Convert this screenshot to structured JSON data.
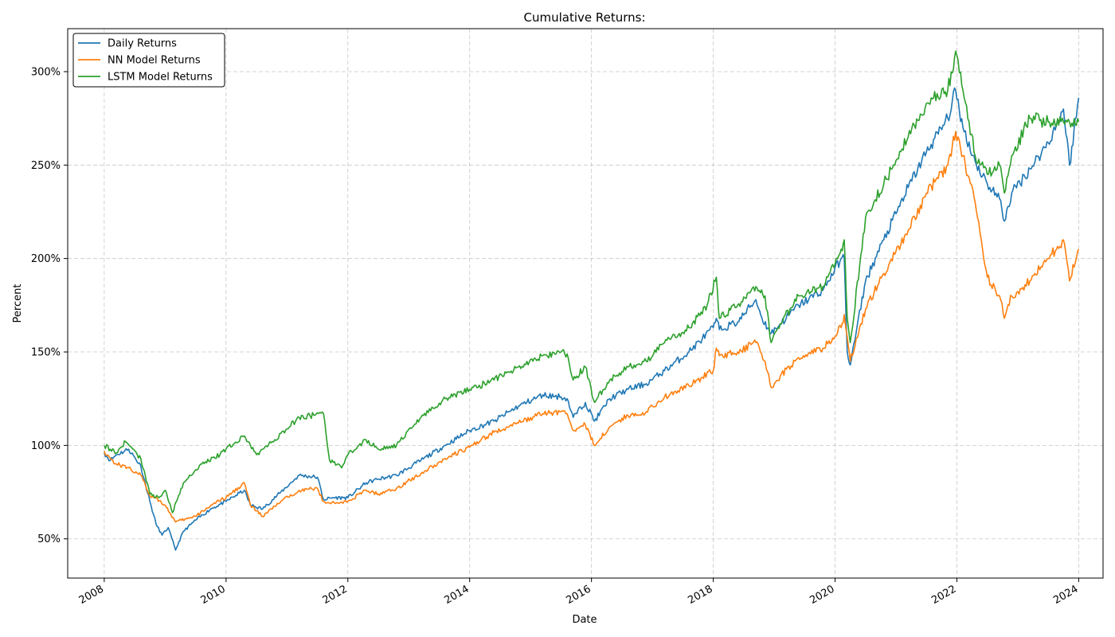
{
  "chart_data": {
    "type": "line",
    "title": "Cumulative Returns:",
    "xlabel": "Date",
    "ylabel": "Percent",
    "xlim": [
      2007.4,
      2024.4
    ],
    "ylim": [
      29,
      323
    ],
    "grid": true,
    "legend_position": "top-left",
    "x_ticks": [
      2008,
      2010,
      2012,
      2014,
      2016,
      2018,
      2020,
      2022,
      2024
    ],
    "x_tick_labels": [
      "2008",
      "2010",
      "2012",
      "2014",
      "2016",
      "2018",
      "2020",
      "2022",
      "2024"
    ],
    "y_ticks": [
      50,
      100,
      150,
      200,
      250,
      300
    ],
    "y_tick_labels": [
      "50%",
      "100%",
      "150%",
      "200%",
      "250%",
      "300%"
    ],
    "series": [
      {
        "name": "Daily Returns",
        "color": "#1f77b4",
        "x": [
          2008.0,
          2008.1,
          2008.2,
          2008.4,
          2008.6,
          2008.75,
          2008.85,
          2008.95,
          2009.05,
          2009.17,
          2009.3,
          2009.5,
          2009.75,
          2010.0,
          2010.3,
          2010.4,
          2010.6,
          2010.9,
          2011.2,
          2011.5,
          2011.6,
          2011.75,
          2012.0,
          2012.3,
          2012.5,
          2012.8,
          2013.2,
          2013.6,
          2014.0,
          2014.4,
          2014.8,
          2015.2,
          2015.5,
          2015.6,
          2015.7,
          2015.9,
          2016.05,
          2016.3,
          2016.6,
          2016.9,
          2017.2,
          2017.6,
          2018.0,
          2018.05,
          2018.1,
          2018.4,
          2018.7,
          2018.8,
          2018.95,
          2019.1,
          2019.4,
          2019.8,
          2020.1,
          2020.15,
          2020.2,
          2020.25,
          2020.5,
          2020.8,
          2021.2,
          2021.5,
          2021.85,
          2021.98,
          2022.1,
          2022.3,
          2022.5,
          2022.7,
          2022.78,
          2022.9,
          2023.2,
          2023.5,
          2023.75,
          2023.85,
          2024.0
        ],
        "y": [
          96,
          92,
          95,
          98,
          89,
          70,
          58,
          52,
          56,
          44,
          54,
          60,
          66,
          70,
          76,
          68,
          66,
          75,
          84,
          83,
          71,
          72,
          72,
          80,
          82,
          84,
          92,
          100,
          108,
          113,
          121,
          127,
          126,
          125,
          115,
          123,
          113,
          125,
          130,
          133,
          140,
          150,
          163,
          168,
          162,
          166,
          178,
          168,
          160,
          165,
          175,
          183,
          200,
          200,
          150,
          143,
          188,
          210,
          238,
          257,
          275,
          290,
          270,
          252,
          240,
          232,
          220,
          235,
          248,
          262,
          280,
          250,
          286
        ]
      },
      {
        "name": "NN Model Returns",
        "color": "#ff7f0e",
        "x": [
          2008.0,
          2008.1,
          2008.2,
          2008.4,
          2008.6,
          2008.75,
          2008.85,
          2009.0,
          2009.17,
          2009.5,
          2009.75,
          2010.0,
          2010.3,
          2010.4,
          2010.6,
          2010.9,
          2011.2,
          2011.5,
          2011.6,
          2011.8,
          2012.0,
          2012.3,
          2012.5,
          2012.8,
          2013.2,
          2013.6,
          2014.0,
          2014.4,
          2014.8,
          2015.2,
          2015.5,
          2015.6,
          2015.7,
          2015.9,
          2016.05,
          2016.3,
          2016.6,
          2016.9,
          2017.2,
          2017.6,
          2018.0,
          2018.05,
          2018.1,
          2018.4,
          2018.7,
          2018.85,
          2018.95,
          2019.1,
          2019.4,
          2019.8,
          2020.1,
          2020.15,
          2020.2,
          2020.25,
          2020.5,
          2020.8,
          2021.2,
          2021.5,
          2021.85,
          2021.98,
          2022.1,
          2022.3,
          2022.4,
          2022.5,
          2022.7,
          2022.78,
          2022.9,
          2023.2,
          2023.5,
          2023.75,
          2023.85,
          2024.0
        ],
        "y": [
          97,
          93,
          90,
          88,
          84,
          73,
          72,
          68,
          59,
          62,
          68,
          72,
          80,
          68,
          62,
          70,
          76,
          77,
          70,
          69,
          70,
          76,
          74,
          77,
          85,
          93,
          99,
          107,
          112,
          117,
          118,
          117,
          108,
          111,
          100,
          110,
          116,
          118,
          126,
          132,
          140,
          152,
          148,
          150,
          155,
          145,
          131,
          137,
          147,
          152,
          163,
          170,
          158,
          145,
          173,
          192,
          215,
          235,
          250,
          268,
          255,
          230,
          210,
          190,
          180,
          168,
          180,
          188,
          200,
          210,
          188,
          205
        ]
      },
      {
        "name": "LSTM Model Returns",
        "color": "#2ca02c",
        "x": [
          2008.0,
          2008.1,
          2008.2,
          2008.35,
          2008.6,
          2008.75,
          2008.9,
          2009.0,
          2009.12,
          2009.3,
          2009.6,
          2009.9,
          2010.0,
          2010.3,
          2010.5,
          2010.8,
          2011.2,
          2011.6,
          2011.7,
          2011.9,
          2012.0,
          2012.3,
          2012.5,
          2012.8,
          2013.2,
          2013.6,
          2014.0,
          2014.4,
          2014.8,
          2015.2,
          2015.5,
          2015.6,
          2015.7,
          2015.9,
          2016.05,
          2016.3,
          2016.6,
          2016.9,
          2017.2,
          2017.6,
          2017.9,
          2018.05,
          2018.1,
          2018.4,
          2018.7,
          2018.85,
          2018.95,
          2019.1,
          2019.4,
          2019.8,
          2020.1,
          2020.15,
          2020.2,
          2020.25,
          2020.5,
          2020.8,
          2021.2,
          2021.5,
          2021.85,
          2021.98,
          2022.1,
          2022.3,
          2022.5,
          2022.7,
          2022.78,
          2022.9,
          2023.2,
          2023.5,
          2023.75,
          2023.85,
          2024.0
        ],
        "y": [
          100,
          98,
          96,
          102,
          93,
          74,
          72,
          76,
          64,
          80,
          90,
          95,
          98,
          105,
          95,
          103,
          115,
          117,
          92,
          88,
          95,
          103,
          98,
          100,
          115,
          125,
          130,
          135,
          142,
          148,
          150,
          149,
          135,
          142,
          123,
          135,
          142,
          145,
          155,
          163,
          175,
          190,
          168,
          175,
          185,
          180,
          155,
          165,
          180,
          185,
          205,
          210,
          168,
          155,
          222,
          240,
          265,
          283,
          290,
          311,
          290,
          255,
          245,
          250,
          235,
          255,
          275,
          273,
          273,
          273,
          273
        ]
      }
    ]
  }
}
